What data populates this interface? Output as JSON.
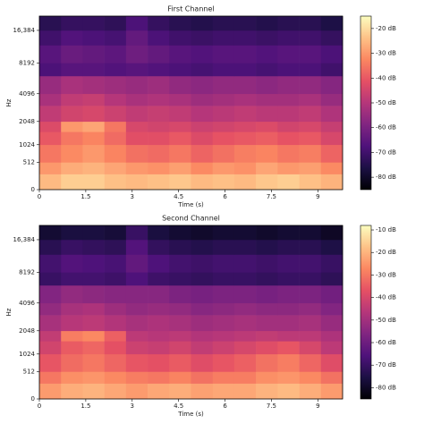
{
  "chart_data": [
    {
      "type": "heatmap",
      "title": "First Channel",
      "xlabel": "Time (s)",
      "ylabel": "Hz",
      "colormap": "magma",
      "yscale": "mel",
      "xlim": [
        0,
        9.8
      ],
      "xticks": [
        0,
        1.5,
        3,
        4.5,
        6,
        7.5,
        9
      ],
      "ylim": [
        0,
        22050
      ],
      "yticks": [
        0,
        512,
        1024,
        2048,
        4096,
        8192,
        {
          "value": 16384,
          "label": "16,384"
        }
      ],
      "clim": [
        -85,
        -15
      ],
      "cticks": [
        {
          "value": -20,
          "label": "-20 dB"
        },
        {
          "value": -30,
          "label": "-30 dB"
        },
        {
          "value": -40,
          "label": "-40 dB"
        },
        {
          "value": -50,
          "label": "-50 dB"
        },
        {
          "value": -60,
          "label": "-60 dB"
        },
        {
          "value": -70,
          "label": "-70 dB"
        },
        {
          "value": -80,
          "label": "-80 dB"
        }
      ],
      "x_edges": [
        0,
        0.7,
        1.4,
        2.1,
        2.8,
        3.5,
        4.2,
        4.9,
        5.6,
        6.3,
        7.0,
        7.7,
        8.4,
        9.1,
        9.8
      ],
      "y_edges": [
        0,
        256,
        512,
        1024,
        1536,
        2048,
        3072,
        4096,
        6144,
        8192,
        12000,
        16384,
        22050
      ],
      "values": [
        [
          -25,
          -22,
          -22,
          -24,
          -25,
          -24,
          -23,
          -25,
          -24,
          -25,
          -23,
          -22,
          -24,
          -26
        ],
        [
          -30,
          -27,
          -26,
          -28,
          -30,
          -31,
          -29,
          -32,
          -30,
          -31,
          -28,
          -30,
          -29,
          -32
        ],
        [
          -35,
          -32,
          -30,
          -33,
          -36,
          -37,
          -35,
          -38,
          -36,
          -34,
          -33,
          -35,
          -34,
          -38
        ],
        [
          -40,
          -35,
          -33,
          -37,
          -42,
          -42,
          -40,
          -43,
          -41,
          -40,
          -39,
          -41,
          -40,
          -44
        ],
        [
          -43,
          -30,
          -28,
          -35,
          -44,
          -45,
          -44,
          -46,
          -45,
          -44,
          -43,
          -45,
          -44,
          -47
        ],
        [
          -48,
          -45,
          -44,
          -46,
          -48,
          -47,
          -48,
          -50,
          -49,
          -48,
          -49,
          -49,
          -48,
          -51
        ],
        [
          -52,
          -48,
          -47,
          -50,
          -52,
          -51,
          -52,
          -54,
          -53,
          -52,
          -53,
          -53,
          -52,
          -55
        ],
        [
          -55,
          -52,
          -53,
          -54,
          -55,
          -54,
          -56,
          -57,
          -56,
          -56,
          -57,
          -56,
          -56,
          -58
        ],
        [
          -68,
          -66,
          -66,
          -67,
          -66,
          -67,
          -68,
          -69,
          -68,
          -68,
          -69,
          -68,
          -68,
          -70
        ],
        [
          -66,
          -63,
          -64,
          -65,
          -62,
          -64,
          -66,
          -67,
          -66,
          -66,
          -67,
          -66,
          -66,
          -68
        ],
        [
          -70,
          -67,
          -68,
          -69,
          -64,
          -68,
          -70,
          -71,
          -70,
          -70,
          -71,
          -70,
          -70,
          -72
        ],
        [
          -74,
          -72,
          -72,
          -73,
          -68,
          -72,
          -74,
          -75,
          -74,
          -74,
          -75,
          -74,
          -74,
          -76
        ]
      ]
    },
    {
      "type": "heatmap",
      "title": "Second Channel",
      "xlabel": "Time (s)",
      "ylabel": "Hz",
      "colormap": "magma",
      "yscale": "mel",
      "xlim": [
        0,
        9.8
      ],
      "xticks": [
        0,
        1.5,
        3,
        4.5,
        6,
        7.5,
        9
      ],
      "ylim": [
        0,
        22050
      ],
      "yticks": [
        0,
        512,
        1024,
        2048,
        4096,
        8192,
        {
          "value": 16384,
          "label": "16,384"
        }
      ],
      "clim": [
        -85,
        -8
      ],
      "cticks": [
        {
          "value": -10,
          "label": "-10 dB"
        },
        {
          "value": -20,
          "label": "-20 dB"
        },
        {
          "value": -30,
          "label": "-30 dB"
        },
        {
          "value": -40,
          "label": "-40 dB"
        },
        {
          "value": -50,
          "label": "-50 dB"
        },
        {
          "value": -60,
          "label": "-60 dB"
        },
        {
          "value": -70,
          "label": "-70 dB"
        },
        {
          "value": -80,
          "label": "-80 dB"
        }
      ],
      "x_edges": [
        0,
        0.7,
        1.4,
        2.1,
        2.8,
        3.5,
        4.2,
        4.9,
        5.6,
        6.3,
        7.0,
        7.7,
        8.4,
        9.1,
        9.8
      ],
      "y_edges": [
        0,
        256,
        512,
        1024,
        1536,
        2048,
        3072,
        4096,
        6144,
        8192,
        12000,
        16384,
        22050
      ],
      "values": [
        [
          -24,
          -21,
          -20,
          -22,
          -24,
          -22,
          -21,
          -23,
          -22,
          -22,
          -20,
          -19,
          -21,
          -24
        ],
        [
          -30,
          -26,
          -25,
          -27,
          -29,
          -30,
          -28,
          -31,
          -29,
          -29,
          -26,
          -25,
          -27,
          -31
        ],
        [
          -36,
          -32,
          -30,
          -33,
          -36,
          -37,
          -35,
          -38,
          -36,
          -34,
          -31,
          -29,
          -33,
          -38
        ],
        [
          -41,
          -35,
          -33,
          -37,
          -42,
          -43,
          -41,
          -44,
          -42,
          -40,
          -38,
          -36,
          -40,
          -45
        ],
        [
          -44,
          -29,
          -27,
          -34,
          -45,
          -46,
          -45,
          -47,
          -46,
          -45,
          -44,
          -45,
          -45,
          -48
        ],
        [
          -49,
          -46,
          -45,
          -47,
          -49,
          -48,
          -49,
          -51,
          -50,
          -49,
          -50,
          -50,
          -49,
          -52
        ],
        [
          -53,
          -49,
          -48,
          -51,
          -53,
          -52,
          -53,
          -55,
          -54,
          -53,
          -54,
          -54,
          -53,
          -56
        ],
        [
          -56,
          -53,
          -54,
          -55,
          -55,
          -55,
          -57,
          -58,
          -57,
          -57,
          -58,
          -57,
          -57,
          -59
        ],
        [
          -70,
          -68,
          -68,
          -69,
          -66,
          -69,
          -70,
          -71,
          -70,
          -70,
          -71,
          -70,
          -70,
          -72
        ],
        [
          -68,
          -65,
          -66,
          -67,
          -62,
          -66,
          -68,
          -69,
          -68,
          -68,
          -69,
          -68,
          -68,
          -70
        ],
        [
          -73,
          -70,
          -71,
          -72,
          -65,
          -71,
          -73,
          -74,
          -73,
          -73,
          -74,
          -73,
          -73,
          -75
        ],
        [
          -78,
          -76,
          -76,
          -77,
          -70,
          -76,
          -78,
          -79,
          -78,
          -78,
          -79,
          -78,
          -78,
          -80
        ]
      ]
    }
  ]
}
